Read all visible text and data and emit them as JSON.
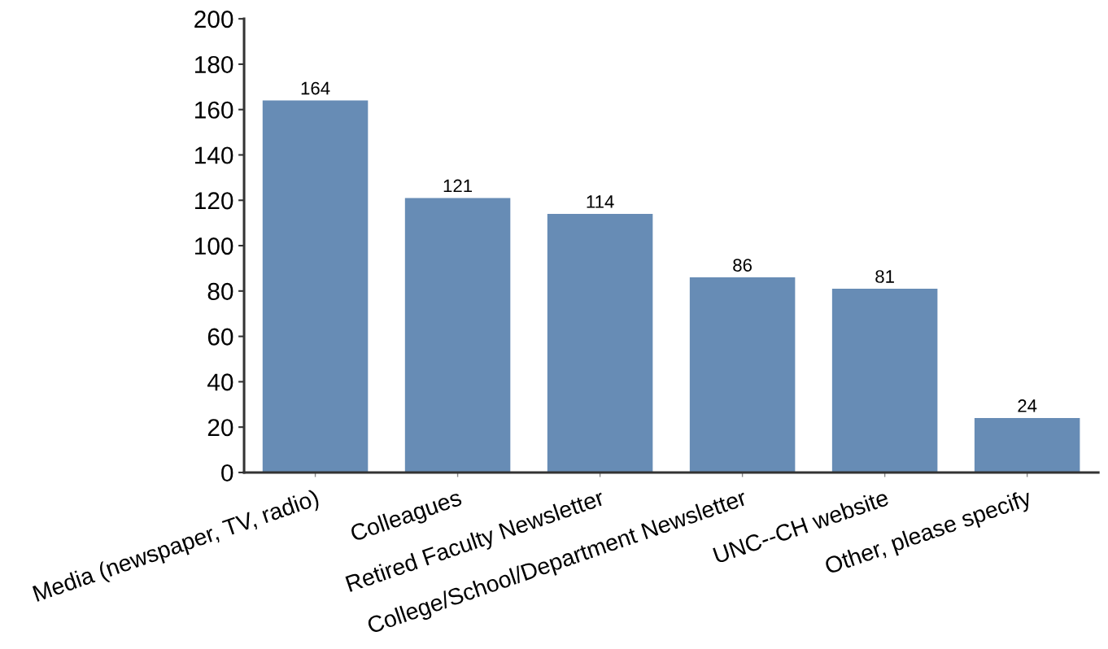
{
  "chart_data": {
    "type": "bar",
    "categories": [
      "Media (newspaper, TV, radio)",
      "Colleagues",
      "Retired Faculty Newsletter",
      "College/School/Department Newsletter",
      "UNC--CH website",
      "Other, please specify"
    ],
    "values": [
      164,
      121,
      114,
      86,
      81,
      24
    ],
    "color": "#678cb5",
    "ylim": [
      0,
      200
    ],
    "yticks": [
      0,
      20,
      40,
      60,
      80,
      100,
      120,
      140,
      160,
      180,
      200
    ],
    "grid": false,
    "legend": false,
    "data_labels": true
  }
}
